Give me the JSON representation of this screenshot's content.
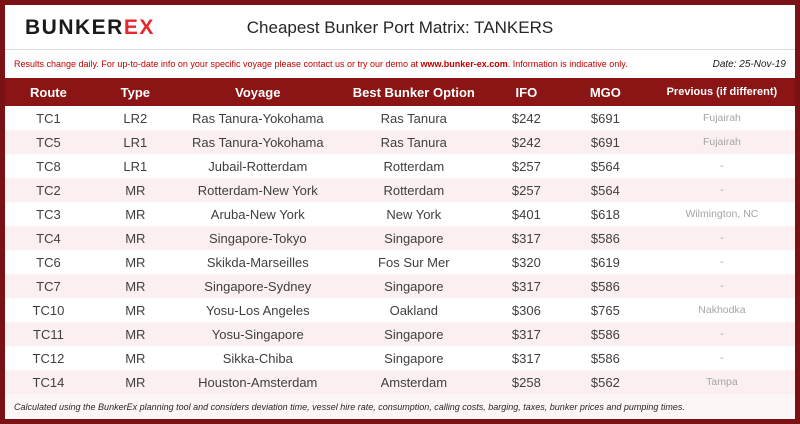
{
  "brand": {
    "logo_black": "BUNKER",
    "logo_red": "EX"
  },
  "header": {
    "title": "Cheapest Bunker Port Matrix: TANKERS"
  },
  "notice": {
    "text_before_link": "Results change daily. For up-to-date info on your specific voyage please contact us or try our demo at ",
    "link": "www.bunker-ex.com",
    "text_after_link": ". Information is indicative only.",
    "date": "Date: 25-Nov-19"
  },
  "table": {
    "columns": [
      "Route",
      "Type",
      "Voyage",
      "Best Bunker Option",
      "IFO",
      "MGO",
      "Previous (if different)"
    ],
    "rows": [
      [
        "TC1",
        "LR2",
        "Ras Tanura-Yokohama",
        "Ras Tanura",
        "$242",
        "$691",
        "Fujairah"
      ],
      [
        "TC5",
        "LR1",
        "Ras Tanura-Yokohama",
        "Ras Tanura",
        "$242",
        "$691",
        "Fujairah"
      ],
      [
        "TC8",
        "LR1",
        "Jubail-Rotterdam",
        "Rotterdam",
        "$257",
        "$564",
        "-"
      ],
      [
        "TC2",
        "MR",
        "Rotterdam-New York",
        "Rotterdam",
        "$257",
        "$564",
        "-"
      ],
      [
        "TC3",
        "MR",
        "Aruba-New York",
        "New York",
        "$401",
        "$618",
        "Wilmington, NC"
      ],
      [
        "TC4",
        "MR",
        "Singapore-Tokyo",
        "Singapore",
        "$317",
        "$586",
        "-"
      ],
      [
        "TC6",
        "MR",
        "Skikda-Marseilles",
        "Fos Sur Mer",
        "$320",
        "$619",
        "-"
      ],
      [
        "TC7",
        "MR",
        "Singapore-Sydney",
        "Singapore",
        "$317",
        "$586",
        "-"
      ],
      [
        "TC10",
        "MR",
        "Yosu-Los Angeles",
        "Oakland",
        "$306",
        "$765",
        "Nakhodka"
      ],
      [
        "TC11",
        "MR",
        "Yosu-Singapore",
        "Singapore",
        "$317",
        "$586",
        "-"
      ],
      [
        "TC12",
        "MR",
        "Sikka-Chiba",
        "Singapore",
        "$317",
        "$586",
        "-"
      ],
      [
        "TC14",
        "MR",
        "Houston-Amsterdam",
        "Amsterdam",
        "$258",
        "$562",
        "Tampa"
      ]
    ]
  },
  "footer": {
    "note": "Calculated using the BunkerEx planning tool and considers deviation time, vessel hire rate, consumption, calling costs, barging, taxes, bunker prices and pumping times."
  },
  "colors": {
    "maroon_header": "#8b1414",
    "page_border": "#7a1114",
    "row_alt_pink": "#fbefef",
    "notice_red": "#c00000",
    "logo_red": "#e8272c",
    "muted_gray": "#a6a6a6",
    "cell_text": "#3f3f3f"
  }
}
